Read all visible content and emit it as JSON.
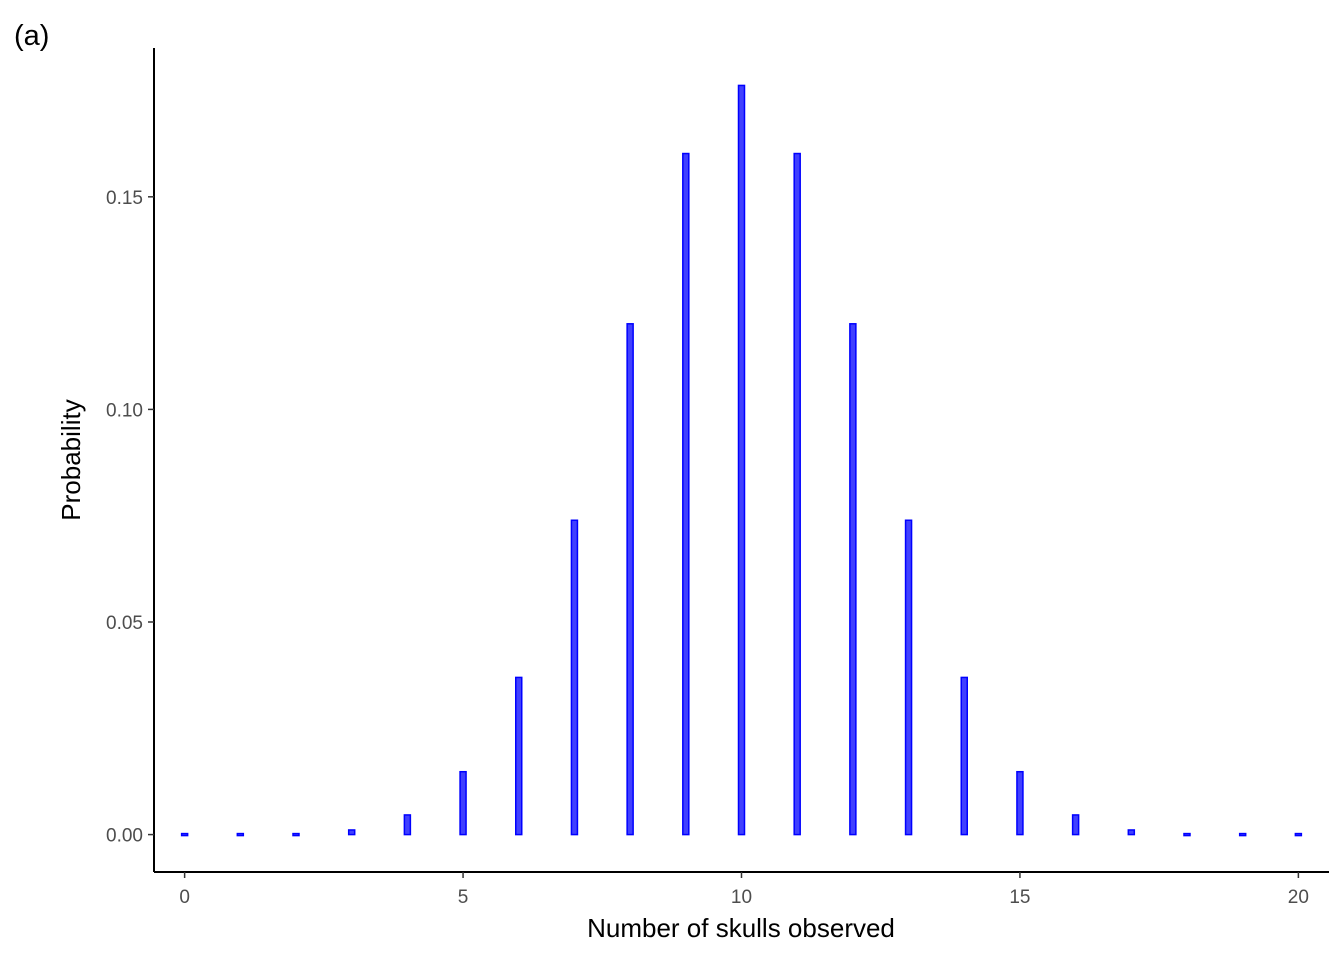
{
  "panel_label": "(a)",
  "chart_data": {
    "type": "bar",
    "xlabel": "Number of skulls observed",
    "ylabel": "Probability",
    "x": [
      0,
      1,
      2,
      3,
      4,
      5,
      6,
      7,
      8,
      9,
      10,
      11,
      12,
      13,
      14,
      15,
      16,
      17,
      18,
      19,
      20
    ],
    "values": [
      1e-06,
      1.9e-05,
      0.000181,
      0.001087,
      0.004621,
      0.014786,
      0.036964,
      0.073929,
      0.120134,
      0.160179,
      0.176197,
      0.160179,
      0.120134,
      0.073929,
      0.036964,
      0.014786,
      0.004621,
      0.001087,
      0.000181,
      1.9e-05,
      1e-06
    ],
    "xlim": [
      -0.55,
      20.55
    ],
    "ylim": [
      -0.0088,
      0.185
    ],
    "x_ticks": [
      0,
      5,
      10,
      15,
      20
    ],
    "x_tick_labels": [
      "0",
      "5",
      "10",
      "15",
      "20"
    ],
    "y_ticks": [
      0,
      0.05,
      0.1,
      0.15
    ],
    "y_tick_labels": [
      "0.00",
      "0.05",
      "0.10",
      "0.15"
    ],
    "grid": false,
    "bar_fill": "#0000ff",
    "bar_outline": "#0000ff"
  }
}
